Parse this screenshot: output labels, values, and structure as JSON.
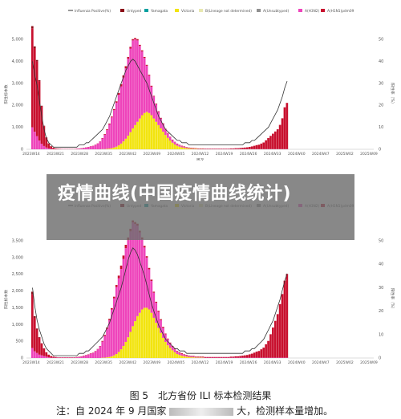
{
  "banner": {
    "title": "疫情曲线(中国疫情曲线统计)"
  },
  "caption": {
    "figure": "图 5　北方省份 ILI 标本检测结果",
    "note": "注：自 2024 年 9 月国家",
    "note_tail": "大，检测样本量增加。"
  },
  "colors": {
    "untyped": "#8B0A16",
    "yamagata": "#00A0A0",
    "victoria": "#F2E40F",
    "b_lineage_nd": "#E8E8B0",
    "a_unsubtyped": "#909090",
    "a_h3n2": "#EE44BB",
    "a_h1n1": "#C8102E",
    "positive_line": "#333333"
  },
  "chart_data": [
    {
      "type": "bar",
      "stacked": true,
      "title": "",
      "xlabel": "周次",
      "ylabel": "阳性标本数",
      "y2label": "阳性率（%）",
      "legend": [
        "Influenza Positive(%)",
        "Untyped",
        "Yamagata",
        "Victoria",
        "B(Lineage not determined)",
        "A(Unsubtyped)",
        "A(H3N2)",
        "A(H1N1)pdm09"
      ],
      "legend_position": "top",
      "ylim": [
        0,
        5000
      ],
      "y2lim": [
        0,
        50
      ],
      "yticks": [
        "0",
        "1,000",
        "2,000",
        "3,000",
        "4,000",
        "5,000"
      ],
      "y2ticks": [
        "0",
        "10",
        "20",
        "30",
        "40",
        "50"
      ],
      "xticks": [
        "2023W14",
        "2023W21",
        "2023W28",
        "2023W35",
        "2023W42",
        "2023W49",
        "2024W05",
        "2024W12",
        "2024W19",
        "2024W26",
        "2024W33",
        "2024W40",
        "2024W47",
        "2025W02",
        "2025W09"
      ],
      "series_h1n1": [
        4500,
        3800,
        3400,
        2700,
        1700,
        900,
        450,
        220,
        110,
        60,
        30,
        20,
        15,
        10,
        10,
        10,
        10,
        10,
        10,
        10,
        10,
        10,
        10,
        10,
        10,
        10,
        10,
        10,
        10,
        10,
        20,
        30,
        40,
        40,
        40,
        50,
        60,
        80,
        100,
        100,
        100,
        80,
        80,
        60,
        60,
        60,
        50,
        50,
        50,
        40,
        40,
        40,
        30,
        30,
        30,
        30,
        30,
        20,
        20,
        20,
        20,
        20,
        20,
        20,
        20,
        20,
        20,
        20,
        20,
        20,
        20,
        20,
        20,
        20,
        20,
        20,
        20,
        20,
        20,
        20,
        20,
        20,
        20,
        20,
        20,
        30,
        30,
        40,
        40,
        50,
        60,
        70,
        80,
        100,
        120,
        150,
        180,
        200,
        250,
        300,
        400,
        500,
        600,
        700,
        800,
        900,
        1100,
        1400,
        1900,
        2100
      ],
      "series_h3n2": [
        1000,
        800,
        600,
        400,
        250,
        150,
        80,
        40,
        20,
        10,
        10,
        10,
        10,
        10,
        10,
        10,
        10,
        10,
        10,
        20,
        30,
        40,
        60,
        80,
        100,
        130,
        150,
        200,
        260,
        350,
        480,
        650,
        850,
        1100,
        1400,
        1700,
        2000,
        2300,
        2600,
        2900,
        3200,
        3500,
        3800,
        4000,
        3900,
        3700,
        3300,
        2900,
        2500,
        2100,
        1700,
        1300,
        1000,
        800,
        600,
        450,
        350,
        260,
        200,
        150,
        120,
        100,
        80,
        60,
        50,
        40,
        30,
        20,
        20,
        20,
        10,
        10,
        10,
        10,
        10,
        10,
        10,
        10,
        10,
        10,
        10,
        10,
        10,
        10,
        10,
        10,
        10,
        10,
        10,
        10,
        10,
        10,
        10,
        10,
        10,
        10,
        10,
        10,
        10,
        10,
        10,
        10,
        10,
        10,
        10,
        10,
        10,
        10,
        10,
        10
      ],
      "series_victoria": [
        0,
        0,
        0,
        0,
        0,
        0,
        0,
        0,
        0,
        0,
        0,
        0,
        0,
        0,
        0,
        0,
        0,
        0,
        0,
        0,
        0,
        0,
        0,
        0,
        0,
        0,
        0,
        0,
        0,
        0,
        10,
        10,
        20,
        30,
        50,
        80,
        120,
        180,
        260,
        360,
        480,
        620,
        780,
        950,
        1100,
        1250,
        1400,
        1550,
        1650,
        1700,
        1650,
        1550,
        1400,
        1250,
        1100,
        950,
        800,
        650,
        520,
        400,
        300,
        220,
        160,
        120,
        90,
        70,
        50,
        40,
        30,
        20,
        20,
        10,
        10,
        10,
        0,
        0,
        0,
        0,
        0,
        0,
        0,
        0,
        0,
        0,
        0,
        0,
        0,
        0,
        0,
        0,
        0,
        0,
        0,
        0,
        0,
        0,
        0,
        0,
        0,
        0,
        0,
        0,
        0,
        0,
        0,
        0,
        0,
        0,
        0,
        0
      ],
      "series_untyped": [
        100,
        80,
        60,
        40,
        30,
        20,
        10,
        10,
        10,
        0,
        0,
        0,
        0,
        0,
        0,
        0,
        0,
        0,
        0,
        0,
        0,
        0,
        0,
        0,
        0,
        0,
        0,
        0,
        0,
        0,
        0,
        0,
        0,
        0,
        0,
        0,
        0,
        0,
        0,
        0,
        0,
        0,
        0,
        0,
        0,
        0,
        0,
        0,
        0,
        0,
        0,
        0,
        0,
        0,
        0,
        0,
        0,
        0,
        0,
        0,
        0,
        0,
        0,
        0,
        0,
        0,
        0,
        0,
        0,
        0,
        0,
        0,
        0,
        0,
        0,
        0,
        0,
        0,
        0,
        0,
        0,
        0,
        0,
        0,
        0,
        0,
        0,
        0,
        0,
        0,
        0,
        0,
        0,
        0,
        0,
        0,
        0,
        0,
        0,
        0,
        0,
        0,
        0,
        0,
        0,
        0,
        0,
        0,
        0,
        0
      ],
      "positive_pct": [
        40,
        34,
        29,
        22,
        15,
        9,
        5,
        3,
        2,
        1,
        1,
        1,
        1,
        1,
        1,
        1,
        1,
        1,
        1,
        1,
        2,
        2,
        2,
        3,
        3,
        4,
        5,
        6,
        7,
        8,
        9,
        11,
        13,
        15,
        18,
        21,
        24,
        27,
        30,
        33,
        36,
        38,
        40,
        41,
        40,
        38,
        36,
        34,
        32,
        30,
        27,
        24,
        21,
        18,
        15,
        13,
        11,
        9,
        8,
        7,
        6,
        5,
        4,
        4,
        3,
        3,
        3,
        2,
        2,
        2,
        2,
        2,
        2,
        2,
        2,
        2,
        2,
        2,
        2,
        2,
        2,
        2,
        2,
        2,
        2,
        2,
        2,
        2,
        2,
        2,
        2,
        3,
        3,
        3,
        4,
        4,
        5,
        6,
        7,
        8,
        9,
        10,
        12,
        14,
        16,
        18,
        21,
        24,
        28,
        31
      ]
    },
    {
      "type": "bar",
      "stacked": true,
      "title": "",
      "xlabel": "周次",
      "ylabel": "阳性标本数",
      "y2label": "阳性率（%）",
      "legend": [
        "Influenza Positive(%)",
        "Untyped",
        "Yamagata",
        "Victoria",
        "B(Lineage not determined)",
        "A(Unsubtyped)",
        "A(H3N2)",
        "A(H1N1)pdm09"
      ],
      "legend_position": "top",
      "ylim": [
        0,
        3500
      ],
      "y2lim": [
        0,
        50
      ],
      "yticks": [
        "0",
        "500",
        "1,000",
        "1,500",
        "2,000",
        "2,500",
        "3,000",
        "3,500"
      ],
      "y2ticks": [
        "0",
        "10",
        "20",
        "30",
        "40",
        "50"
      ],
      "xticks": [
        "2023W14",
        "2023W21",
        "2023W28",
        "2023W35",
        "2023W42",
        "2023W49",
        "2024W05",
        "2024W12",
        "2024W19",
        "2024W26",
        "2024W33",
        "2024W40",
        "2024W47",
        "2025W02",
        "2025W09"
      ],
      "series_h1n1": [
        1600,
        1000,
        700,
        500,
        350,
        220,
        130,
        80,
        50,
        30,
        20,
        10,
        10,
        10,
        10,
        10,
        10,
        10,
        10,
        10,
        10,
        10,
        10,
        10,
        10,
        10,
        10,
        10,
        10,
        10,
        20,
        30,
        40,
        40,
        40,
        50,
        60,
        80,
        100,
        100,
        100,
        80,
        80,
        60,
        60,
        60,
        50,
        50,
        50,
        40,
        40,
        40,
        30,
        30,
        30,
        30,
        30,
        20,
        20,
        20,
        20,
        20,
        20,
        20,
        20,
        20,
        20,
        20,
        20,
        20,
        20,
        20,
        20,
        20,
        20,
        20,
        20,
        20,
        20,
        20,
        20,
        20,
        20,
        20,
        20,
        30,
        30,
        40,
        40,
        50,
        60,
        70,
        80,
        100,
        120,
        150,
        180,
        200,
        250,
        300,
        400,
        500,
        700,
        900,
        1100,
        1300,
        1600,
        1900,
        2300,
        2500
      ],
      "series_h3n2": [
        300,
        200,
        150,
        100,
        80,
        60,
        40,
        20,
        10,
        10,
        10,
        10,
        10,
        10,
        10,
        10,
        10,
        10,
        10,
        20,
        30,
        40,
        60,
        80,
        100,
        130,
        150,
        200,
        260,
        350,
        480,
        650,
        850,
        1100,
        1400,
        1700,
        2000,
        2200,
        2400,
        2600,
        2800,
        2900,
        3000,
        3100,
        2900,
        2700,
        2400,
        2100,
        1800,
        1500,
        1200,
        950,
        750,
        600,
        480,
        380,
        300,
        230,
        180,
        140,
        110,
        90,
        70,
        60,
        50,
        40,
        30,
        20,
        20,
        20,
        10,
        10,
        10,
        10,
        10,
        10,
        10,
        10,
        10,
        10,
        10,
        10,
        10,
        10,
        10,
        10,
        10,
        10,
        10,
        10,
        10,
        10,
        10,
        10,
        10,
        10,
        10,
        10,
        10,
        10,
        10,
        10,
        10,
        10,
        10,
        10,
        10,
        10,
        10,
        10
      ],
      "series_victoria": [
        0,
        0,
        0,
        0,
        0,
        0,
        0,
        0,
        0,
        0,
        0,
        0,
        0,
        0,
        0,
        0,
        0,
        0,
        0,
        0,
        0,
        0,
        0,
        0,
        0,
        0,
        0,
        0,
        0,
        0,
        10,
        10,
        20,
        30,
        50,
        80,
        120,
        180,
        260,
        360,
        480,
        620,
        780,
        950,
        1100,
        1250,
        1350,
        1450,
        1500,
        1500,
        1450,
        1350,
        1200,
        1050,
        900,
        750,
        600,
        480,
        380,
        300,
        230,
        170,
        120,
        90,
        70,
        50,
        40,
        30,
        20,
        20,
        10,
        10,
        10,
        10,
        0,
        0,
        0,
        0,
        0,
        0,
        0,
        0,
        0,
        0,
        0,
        0,
        0,
        0,
        0,
        0,
        0,
        0,
        0,
        0,
        0,
        0,
        0,
        0,
        0,
        0,
        0,
        0,
        0,
        0,
        0,
        0,
        0,
        0,
        0,
        0
      ],
      "series_untyped": [
        80,
        50,
        30,
        20,
        10,
        10,
        0,
        0,
        0,
        0,
        0,
        0,
        0,
        0,
        0,
        0,
        0,
        0,
        0,
        0,
        0,
        0,
        0,
        0,
        0,
        0,
        0,
        0,
        0,
        0,
        0,
        0,
        0,
        0,
        0,
        0,
        0,
        0,
        0,
        0,
        0,
        0,
        0,
        0,
        0,
        0,
        0,
        0,
        0,
        0,
        0,
        0,
        0,
        0,
        0,
        0,
        0,
        0,
        0,
        0,
        0,
        0,
        0,
        0,
        0,
        0,
        0,
        0,
        0,
        0,
        0,
        0,
        0,
        0,
        0,
        0,
        0,
        0,
        0,
        0,
        0,
        0,
        0,
        0,
        0,
        0,
        0,
        0,
        0,
        0,
        0,
        0,
        0,
        0,
        0,
        0,
        0,
        0,
        0,
        0,
        0,
        0,
        0,
        0,
        0,
        0,
        0,
        0,
        0,
        0
      ],
      "positive_pct": [
        30,
        22,
        16,
        12,
        9,
        6,
        4,
        3,
        2,
        1,
        1,
        1,
        1,
        1,
        1,
        1,
        1,
        1,
        1,
        1,
        2,
        2,
        2,
        3,
        3,
        4,
        5,
        6,
        7,
        8,
        9,
        11,
        13,
        15,
        18,
        21,
        24,
        27,
        30,
        34,
        38,
        42,
        45,
        47,
        46,
        44,
        41,
        38,
        35,
        31,
        27,
        23,
        20,
        17,
        14,
        12,
        10,
        8,
        7,
        6,
        5,
        4,
        4,
        3,
        3,
        3,
        2,
        2,
        2,
        2,
        2,
        2,
        2,
        2,
        2,
        2,
        2,
        2,
        2,
        2,
        2,
        2,
        2,
        2,
        2,
        2,
        2,
        2,
        2,
        2,
        2,
        3,
        3,
        3,
        4,
        4,
        5,
        6,
        7,
        8,
        10,
        12,
        14,
        16,
        19,
        22,
        25,
        29,
        33,
        36
      ]
    }
  ]
}
